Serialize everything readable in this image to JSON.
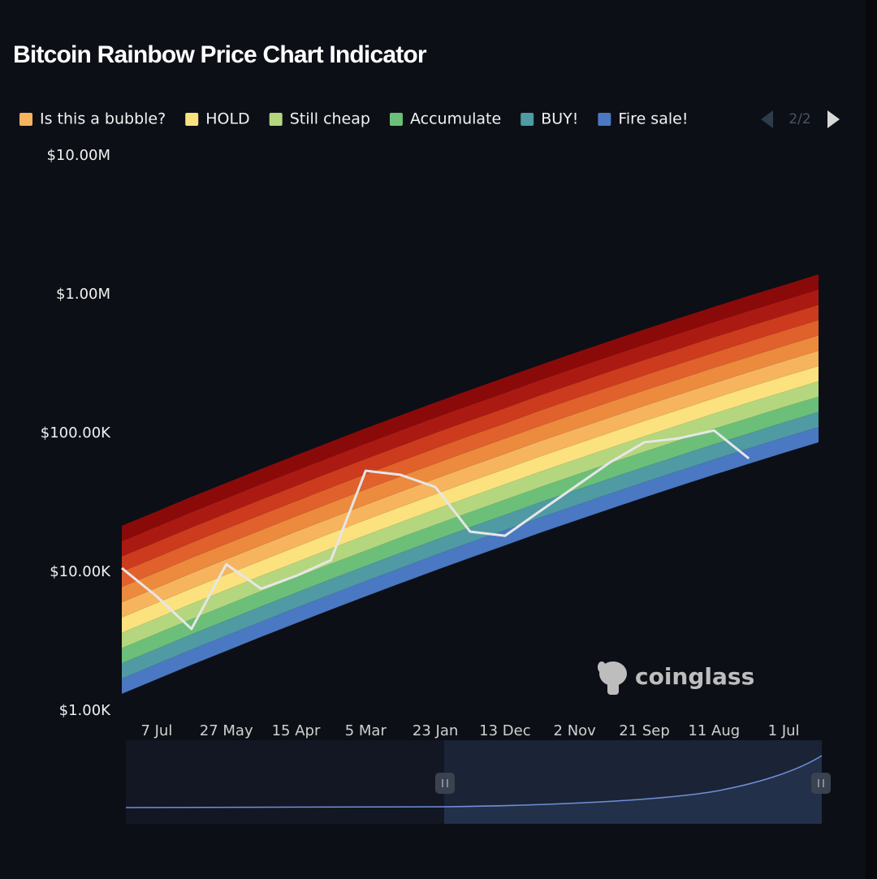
{
  "chart_data": {
    "type": "rainbow",
    "title": "Bitcoin Rainbow Price Chart Indicator",
    "pager": "2/2",
    "watermark": "coinglass",
    "log_scale": true,
    "ylim": [
      1000,
      10000000
    ],
    "yticks": [
      {
        "value": 1000,
        "label": "$1.00K"
      },
      {
        "value": 10000,
        "label": "$10.00K"
      },
      {
        "value": 100000,
        "label": "$100.00K"
      },
      {
        "value": 1000000,
        "label": "$1.00M"
      },
      {
        "value": 10000000,
        "label": "$10.00M"
      }
    ],
    "categories": [
      null,
      "7 Jul",
      null,
      "27 May",
      null,
      "15 Apr",
      null,
      "5 Mar",
      null,
      "23 Jan",
      null,
      "13 Dec",
      null,
      "2 Nov",
      null,
      "21 Sep",
      null,
      "11 Aug",
      null,
      "1 Jul",
      null
    ],
    "series": [
      {
        "color": "#e6e6e6",
        "values": [
          10700,
          6700,
          3900,
          11400,
          7600,
          9400,
          12200,
          53800,
          50300,
          41100,
          19600,
          18300,
          27500,
          41100,
          61500,
          86300,
          92300,
          105000,
          66000,
          null,
          null
        ]
      }
    ],
    "boundaries": [
      [
        1330,
        1690,
        2150,
        2710,
        3420,
        4290,
        5370,
        6700,
        8320,
        10300,
        12700,
        15600,
        19200,
        23400,
        28500,
        34600,
        41800,
        50400,
        60500,
        72400,
        86300
      ],
      [
        1710,
        2180,
        2770,
        3490,
        4400,
        5530,
        6920,
        8630,
        10700,
        13300,
        16400,
        20100,
        24700,
        30100,
        36700,
        44600,
        53800,
        64900,
        77900,
        93300,
        111000
      ],
      [
        2210,
        2800,
        3570,
        4500,
        5670,
        7120,
        8910,
        11100,
        13800,
        17100,
        21100,
        25900,
        31900,
        38800,
        47300,
        57400,
        69300,
        83600,
        100000,
        120000,
        143000
      ],
      [
        2840,
        3610,
        4590,
        5790,
        7310,
        9170,
        11500,
        14300,
        17800,
        22000,
        27100,
        33300,
        41000,
        50000,
        60900,
        73900,
        89300,
        108000,
        129000,
        155000,
        184000
      ],
      [
        3660,
        4650,
        5920,
        7460,
        9420,
        11800,
        14800,
        18500,
        22900,
        28400,
        35000,
        43000,
        52900,
        64400,
        78500,
        95300,
        115000,
        139000,
        167000,
        199000,
        238000
      ],
      [
        4720,
        6000,
        7630,
        9620,
        12100,
        15200,
        19100,
        23800,
        29500,
        36500,
        45100,
        55300,
        68100,
        83000,
        101000,
        123000,
        148000,
        179000,
        215000,
        257000,
        306000
      ],
      [
        6080,
        7720,
        9830,
        12400,
        15600,
        19600,
        24500,
        30600,
        38000,
        47100,
        58100,
        71300,
        87800,
        107000,
        130000,
        158000,
        191000,
        230000,
        277000,
        331000,
        394000
      ],
      [
        7830,
        9950,
        12700,
        16000,
        20100,
        25300,
        31600,
        39500,
        49000,
        60600,
        74800,
        91900,
        113000,
        138000,
        168000,
        204000,
        246000,
        297000,
        356000,
        426000,
        508000
      ],
      [
        10100,
        12800,
        16300,
        20600,
        25900,
        32500,
        40700,
        50800,
        63100,
        78100,
        96300,
        118000,
        146000,
        178000,
        216000,
        262000,
        317000,
        382000,
        459000,
        549000,
        655000
      ],
      [
        13000,
        16500,
        21000,
        26500,
        33400,
        41900,
        52500,
        65500,
        81300,
        101000,
        124000,
        152000,
        188000,
        229000,
        279000,
        338000,
        408000,
        493000,
        591000,
        707000,
        843000
      ],
      [
        16700,
        21300,
        27100,
        34100,
        43100,
        54000,
        67600,
        84400,
        105000,
        130000,
        160000,
        196000,
        242000,
        295000,
        359000,
        436000,
        526000,
        635000,
        762000,
        912000,
        1090000
      ],
      [
        21600,
        27400,
        34900,
        44000,
        55500,
        69600,
        87100,
        109000,
        135000,
        167000,
        206000,
        253000,
        311000,
        380000,
        462000,
        561000,
        678000,
        817000,
        981000,
        1170000,
        1400000
      ]
    ],
    "bands": [
      {
        "name": "Fire sale!",
        "color": "#4a78c2"
      },
      {
        "name": "BUY!",
        "color": "#4f9aa3"
      },
      {
        "name": "Accumulate",
        "color": "#6cbf78"
      },
      {
        "name": "Still cheap",
        "color": "#b4d67e"
      },
      {
        "name": "HOLD",
        "color": "#fbe27e"
      },
      {
        "name": "Is this a bubble?",
        "color": "#f6b45f"
      },
      {
        "color": "#ec8a3e"
      },
      {
        "color": "#e0612b"
      },
      {
        "color": "#cc3b1d"
      },
      {
        "color": "#ab1a12"
      },
      {
        "color": "#8a0a0a"
      }
    ]
  }
}
